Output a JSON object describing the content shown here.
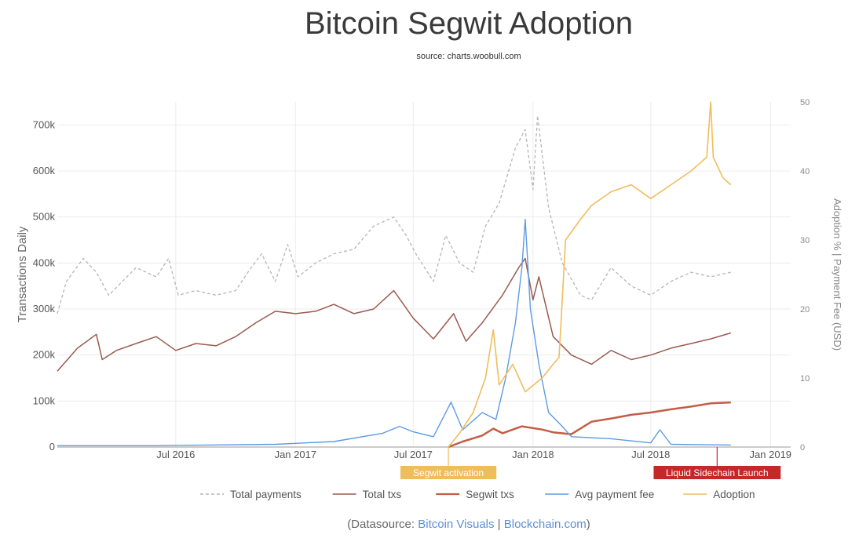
{
  "title": "Bitcoin Segwit Adoption",
  "subtitle": "source: charts.woobull.com",
  "datasource": {
    "prefix": "(Datasource: ",
    "link1": "Bitcoin Visuals",
    "sep": " | ",
    "link2": "Blockchain.com",
    "suffix": ")"
  },
  "colors": {
    "total_payments": "#b5b5b5",
    "total_txs": "#9a5a4e",
    "segwit_txs": "#c25e45",
    "avg_fee": "#5d9be3",
    "adoption": "#efbd5c",
    "grid": "#ececec",
    "activation_bg": "#efbd5c",
    "liquid_bg": "#c62828"
  },
  "chart_data": {
    "type": "line",
    "title": "Bitcoin Segwit Adoption",
    "subtitle": "source: charts.woobull.com",
    "ylabel": "Transactions Daily",
    "y2label": "Adoption % | Payment Fee (USD)",
    "x_range": [
      "2016-01-01",
      "2019-02-01"
    ],
    "ylim": [
      0,
      750000
    ],
    "y2lim": [
      0,
      50
    ],
    "x_ticks": [
      "Jul 2016",
      "Jan 2017",
      "Jul 2017",
      "Jan 2018",
      "Jul 2018",
      "Jan 2019"
    ],
    "y_ticks": [
      "0",
      "100k",
      "200k",
      "300k",
      "400k",
      "500k",
      "600k",
      "700k"
    ],
    "y2_ticks": [
      "0",
      "10",
      "20",
      "30",
      "40",
      "50"
    ],
    "grid": true,
    "legend_position": "bottom",
    "annotations": [
      {
        "text": "Segwit activation",
        "x": "2017-08-24"
      },
      {
        "text": "Liquid Sidechain Launch",
        "x": "2018-10-11"
      }
    ],
    "series": [
      {
        "name": "Total payments",
        "axis": "left",
        "style": "dashed",
        "points": [
          [
            "2016-01-01",
            290000
          ],
          [
            "2016-01-15",
            360000
          ],
          [
            "2016-02-10",
            410000
          ],
          [
            "2016-03-01",
            380000
          ],
          [
            "2016-03-20",
            330000
          ],
          [
            "2016-04-10",
            360000
          ],
          [
            "2016-05-01",
            390000
          ],
          [
            "2016-06-01",
            370000
          ],
          [
            "2016-06-20",
            410000
          ],
          [
            "2016-07-05",
            330000
          ],
          [
            "2016-08-01",
            340000
          ],
          [
            "2016-09-01",
            330000
          ],
          [
            "2016-10-01",
            340000
          ],
          [
            "2016-10-20",
            380000
          ],
          [
            "2016-11-10",
            420000
          ],
          [
            "2016-12-01",
            360000
          ],
          [
            "2016-12-20",
            440000
          ],
          [
            "2017-01-05",
            370000
          ],
          [
            "2017-02-01",
            400000
          ],
          [
            "2017-03-01",
            420000
          ],
          [
            "2017-04-01",
            430000
          ],
          [
            "2017-05-01",
            480000
          ],
          [
            "2017-06-01",
            500000
          ],
          [
            "2017-06-20",
            460000
          ],
          [
            "2017-07-05",
            420000
          ],
          [
            "2017-08-01",
            360000
          ],
          [
            "2017-08-20",
            460000
          ],
          [
            "2017-09-10",
            400000
          ],
          [
            "2017-10-01",
            380000
          ],
          [
            "2017-10-20",
            480000
          ],
          [
            "2017-11-10",
            530000
          ],
          [
            "2017-12-05",
            650000
          ],
          [
            "2017-12-20",
            690000
          ],
          [
            "2018-01-01",
            560000
          ],
          [
            "2018-01-08",
            720000
          ],
          [
            "2018-01-25",
            520000
          ],
          [
            "2018-02-15",
            400000
          ],
          [
            "2018-03-15",
            330000
          ],
          [
            "2018-04-01",
            320000
          ],
          [
            "2018-05-01",
            390000
          ],
          [
            "2018-06-01",
            350000
          ],
          [
            "2018-07-01",
            330000
          ],
          [
            "2018-08-01",
            360000
          ],
          [
            "2018-09-01",
            380000
          ],
          [
            "2018-10-01",
            370000
          ],
          [
            "2018-11-01",
            380000
          ]
        ]
      },
      {
        "name": "Total txs",
        "axis": "left",
        "style": "solid",
        "points": [
          [
            "2016-01-01",
            165000
          ],
          [
            "2016-02-01",
            215000
          ],
          [
            "2016-03-01",
            245000
          ],
          [
            "2016-03-10",
            190000
          ],
          [
            "2016-04-01",
            210000
          ],
          [
            "2016-05-01",
            225000
          ],
          [
            "2016-06-01",
            240000
          ],
          [
            "2016-07-01",
            210000
          ],
          [
            "2016-08-01",
            225000
          ],
          [
            "2016-09-01",
            220000
          ],
          [
            "2016-10-01",
            240000
          ],
          [
            "2016-11-01",
            270000
          ],
          [
            "2016-12-01",
            295000
          ],
          [
            "2017-01-01",
            290000
          ],
          [
            "2017-02-01",
            295000
          ],
          [
            "2017-03-01",
            310000
          ],
          [
            "2017-04-01",
            290000
          ],
          [
            "2017-05-01",
            300000
          ],
          [
            "2017-06-01",
            340000
          ],
          [
            "2017-07-01",
            280000
          ],
          [
            "2017-08-01",
            235000
          ],
          [
            "2017-09-01",
            290000
          ],
          [
            "2017-09-20",
            230000
          ],
          [
            "2017-10-15",
            270000
          ],
          [
            "2017-11-15",
            330000
          ],
          [
            "2017-12-10",
            390000
          ],
          [
            "2017-12-20",
            410000
          ],
          [
            "2018-01-01",
            320000
          ],
          [
            "2018-01-10",
            370000
          ],
          [
            "2018-02-01",
            240000
          ],
          [
            "2018-03-01",
            200000
          ],
          [
            "2018-04-01",
            180000
          ],
          [
            "2018-05-01",
            210000
          ],
          [
            "2018-06-01",
            190000
          ],
          [
            "2018-07-01",
            200000
          ],
          [
            "2018-08-01",
            215000
          ],
          [
            "2018-09-01",
            225000
          ],
          [
            "2018-10-01",
            235000
          ],
          [
            "2018-11-01",
            248000
          ]
        ]
      },
      {
        "name": "Segwit txs",
        "axis": "left",
        "style": "solid",
        "points": [
          [
            "2017-08-24",
            0
          ],
          [
            "2017-09-15",
            12000
          ],
          [
            "2017-10-15",
            25000
          ],
          [
            "2017-11-01",
            40000
          ],
          [
            "2017-11-15",
            30000
          ],
          [
            "2017-12-15",
            45000
          ],
          [
            "2018-01-15",
            38000
          ],
          [
            "2018-02-01",
            32000
          ],
          [
            "2018-03-01",
            28000
          ],
          [
            "2018-04-01",
            55000
          ],
          [
            "2018-05-01",
            62000
          ],
          [
            "2018-06-01",
            70000
          ],
          [
            "2018-07-01",
            75000
          ],
          [
            "2018-08-01",
            82000
          ],
          [
            "2018-09-01",
            88000
          ],
          [
            "2018-10-01",
            95000
          ],
          [
            "2018-11-01",
            97000
          ]
        ]
      },
      {
        "name": "Avg payment fee",
        "axis": "right",
        "style": "solid",
        "points": [
          [
            "2016-01-01",
            0.2
          ],
          [
            "2016-06-01",
            0.2
          ],
          [
            "2016-12-01",
            0.4
          ],
          [
            "2017-03-01",
            0.8
          ],
          [
            "2017-05-15",
            2.0
          ],
          [
            "2017-06-10",
            3.0
          ],
          [
            "2017-07-01",
            2.2
          ],
          [
            "2017-08-01",
            1.5
          ],
          [
            "2017-08-28",
            6.5
          ],
          [
            "2017-09-15",
            2.5
          ],
          [
            "2017-10-15",
            5.0
          ],
          [
            "2017-11-05",
            4.0
          ],
          [
            "2017-11-20",
            10.0
          ],
          [
            "2017-12-05",
            18.0
          ],
          [
            "2017-12-15",
            26.0
          ],
          [
            "2017-12-20",
            33.0
          ],
          [
            "2017-12-28",
            20.0
          ],
          [
            "2018-01-10",
            12.0
          ],
          [
            "2018-01-25",
            5.0
          ],
          [
            "2018-02-15",
            3.0
          ],
          [
            "2018-03-01",
            1.5
          ],
          [
            "2018-05-01",
            1.2
          ],
          [
            "2018-07-01",
            0.6
          ],
          [
            "2018-07-15",
            2.5
          ],
          [
            "2018-08-01",
            0.4
          ],
          [
            "2018-11-01",
            0.3
          ]
        ]
      },
      {
        "name": "Adoption",
        "axis": "right",
        "style": "solid",
        "points": [
          [
            "2017-08-24",
            0
          ],
          [
            "2017-09-10",
            2
          ],
          [
            "2017-10-01",
            5
          ],
          [
            "2017-10-20",
            10
          ],
          [
            "2017-11-01",
            17
          ],
          [
            "2017-11-10",
            9
          ],
          [
            "2017-12-01",
            12
          ],
          [
            "2017-12-20",
            8
          ],
          [
            "2018-01-15",
            10
          ],
          [
            "2018-02-01",
            12
          ],
          [
            "2018-02-10",
            13
          ],
          [
            "2018-02-20",
            30
          ],
          [
            "2018-03-15",
            33
          ],
          [
            "2018-04-01",
            35
          ],
          [
            "2018-05-01",
            37
          ],
          [
            "2018-06-01",
            38
          ],
          [
            "2018-07-01",
            36
          ],
          [
            "2018-08-01",
            38
          ],
          [
            "2018-09-01",
            40
          ],
          [
            "2018-09-25",
            42
          ],
          [
            "2018-10-01",
            50
          ],
          [
            "2018-10-05",
            42
          ],
          [
            "2018-10-20",
            39
          ],
          [
            "2018-11-01",
            38
          ]
        ]
      }
    ]
  }
}
